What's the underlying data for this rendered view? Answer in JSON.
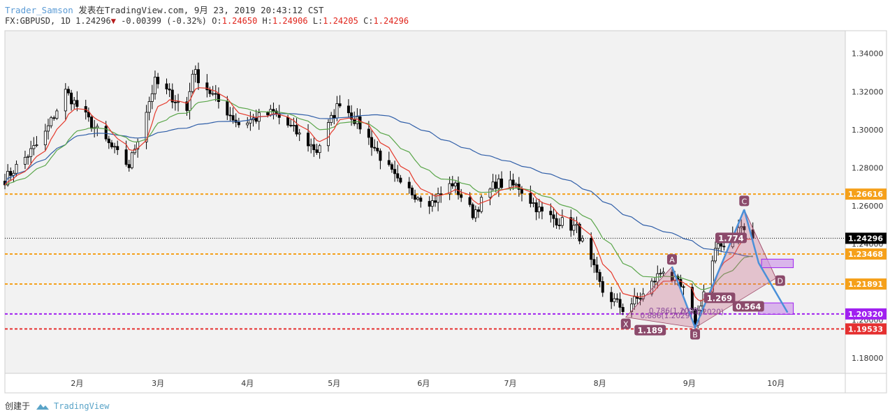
{
  "header": {
    "author": "Trader_Samson",
    "published_prefix": " 发表在TradingView.com, ",
    "datetime": "9月 23, 2019 20:43:12 CST",
    "symbol": "FX:GBPUSD, 1D",
    "last": "1.24296",
    "change_arrow": "▼",
    "change": "-0.00399 (-0.32%)",
    "o_label": "O:",
    "o": "1.24650",
    "h_label": "H:",
    "h": "1.24906",
    "l_label": "L:",
    "l": "1.24205",
    "c_label": "C:",
    "c": "1.24296"
  },
  "footer": {
    "created_with": "创建于",
    "brand": "TradingView"
  },
  "colors": {
    "up": "#ffffff",
    "down": "#000000",
    "ema_fast": "#e5392b",
    "ema_mid": "#5aa64a",
    "sma_slow": "#2f5ea8",
    "orange": "#f5a01a",
    "purple": "#a020f0",
    "red_level": "#e53030",
    "pattern_label": "#8b4a6b",
    "harmonic_blue": "#4a90d9"
  },
  "chart_data": {
    "type": "candlestick",
    "y_axis": {
      "ticks": [
        1.18,
        1.2,
        1.22,
        1.24,
        1.26,
        1.28,
        1.3,
        1.32,
        1.34
      ],
      "tick_labels": [
        "1.18000",
        "1.20000",
        "1.22000",
        "1.24000",
        "1.26000",
        "1.28000",
        "1.30000",
        "1.32000",
        "1.34000"
      ],
      "ylim": [
        1.172,
        1.352
      ]
    },
    "x_axis": {
      "labels": [
        "2月",
        "3月",
        "4月",
        "5月",
        "6月",
        "7月",
        "8月",
        "9月",
        "10月"
      ],
      "label_dates": [
        "2019-02-01",
        "2019-03-01",
        "2019-04-01",
        "2019-05-01",
        "2019-06-01",
        "2019-07-01",
        "2019-08-01",
        "2019-09-01",
        "2019-10-01"
      ],
      "xlim": [
        "2019-01-07",
        "2019-10-25"
      ]
    },
    "price_levels": [
      {
        "value": 1.26616,
        "label": "1.26616",
        "color": "#f5a01a",
        "style": "dashed"
      },
      {
        "value": 1.23468,
        "label": "1.23468",
        "color": "#f5a01a",
        "style": "dashed"
      },
      {
        "value": 1.21891,
        "label": "1.21891",
        "color": "#f5a01a",
        "style": "dashed"
      },
      {
        "value": 1.2032,
        "label": "1.20320",
        "color": "#a020f0",
        "style": "dashed"
      },
      {
        "value": 1.19533,
        "label": "1.19533",
        "color": "#e53030",
        "style": "dashed"
      },
      {
        "value": 1.24296,
        "label": "1.24296",
        "color": "#000000",
        "style": "dotted"
      }
    ],
    "trend_closes": [
      [
        "2019-01-07",
        1.274
      ],
      [
        "2019-01-20",
        1.295
      ],
      [
        "2019-01-28",
        1.32
      ],
      [
        "2019-02-07",
        1.301
      ],
      [
        "2019-02-15",
        1.287
      ],
      [
        "2019-02-19",
        1.281
      ],
      [
        "2019-02-28",
        1.325
      ],
      [
        "2019-03-04",
        1.32
      ],
      [
        "2019-03-11",
        1.31
      ],
      [
        "2019-03-13",
        1.331
      ],
      [
        "2019-03-20",
        1.318
      ],
      [
        "2019-03-29",
        1.303
      ],
      [
        "2019-04-10",
        1.309
      ],
      [
        "2019-04-25",
        1.289
      ],
      [
        "2019-05-03",
        1.315
      ],
      [
        "2019-05-10",
        1.302
      ],
      [
        "2019-05-24",
        1.27
      ],
      [
        "2019-06-04",
        1.262
      ],
      [
        "2019-06-11",
        1.272
      ],
      [
        "2019-06-18",
        1.256
      ],
      [
        "2019-06-26",
        1.272
      ],
      [
        "2019-07-04",
        1.27
      ],
      [
        "2019-07-12",
        1.256
      ],
      [
        "2019-07-24",
        1.248
      ],
      [
        "2019-08-02",
        1.215
      ],
      [
        "2019-08-09",
        1.206
      ],
      [
        "2019-08-16",
        1.213
      ],
      [
        "2019-08-23",
        1.227
      ],
      [
        "2019-08-30",
        1.215
      ],
      [
        "2019-09-03",
        1.199
      ],
      [
        "2019-09-10",
        1.236
      ],
      [
        "2019-09-19",
        1.249
      ],
      [
        "2019-09-20",
        1.247
      ],
      [
        "2019-09-23",
        1.24296
      ]
    ],
    "harmonic_pattern": {
      "points": [
        {
          "label": "X",
          "date": "2019-08-10",
          "price": 1.2015
        },
        {
          "label": "A",
          "date": "2019-08-26",
          "price": 1.228
        },
        {
          "label": "B",
          "date": "2019-09-03",
          "price": 1.196
        },
        {
          "label": "C",
          "date": "2019-09-20",
          "price": 1.258
        },
        {
          "label": "D",
          "date": "2019-10-01",
          "price": 1.222
        }
      ],
      "ratios": [
        "1.189",
        "0.786(1.2029)",
        "0.5(1.2020)",
        "0.886(1.2029)",
        "1.269",
        "0.564",
        "1.774"
      ],
      "projection": [
        {
          "date": "2019-09-20",
          "price": 1.258
        },
        {
          "date": "2019-09-25",
          "price": 1.23
        },
        {
          "date": "2019-10-05",
          "price": 1.204
        }
      ],
      "boxes": [
        {
          "date_from": "2019-09-26",
          "date_to": "2019-10-07",
          "price_from": 1.2275,
          "price_to": 1.232
        },
        {
          "date_from": "2019-09-25",
          "date_to": "2019-10-07",
          "price_from": 1.203,
          "price_to": 1.209
        }
      ]
    }
  }
}
